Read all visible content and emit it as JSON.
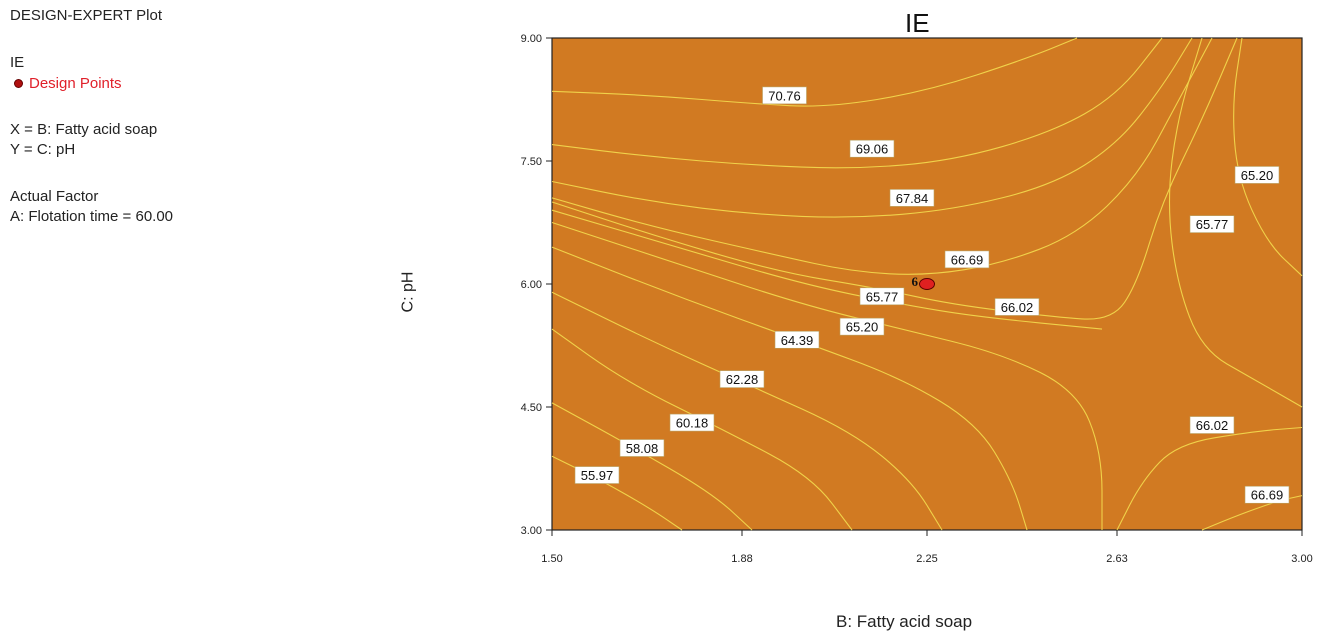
{
  "info": {
    "plot_name": "DESIGN-EXPERT Plot",
    "response": "IE",
    "design_points_label": "Design Points",
    "x_def": "X = B: Fatty acid soap",
    "y_def": "Y = C: pH",
    "actual_factor_heading": "Actual Factor",
    "actual_factor_value": "A: Flotation time = 60.00"
  },
  "colors": {
    "plot_fill": "#d17a22",
    "contour_line": "#f0d24a",
    "design_point": "#e02020",
    "design_point_label": "#e0202a"
  },
  "chart_data": {
    "type": "contour",
    "title": "IE",
    "xlabel": "B: Fatty acid soap",
    "ylabel": "C: pH",
    "xlim": [
      1.5,
      3.0
    ],
    "ylim": [
      3.0,
      9.0
    ],
    "x_ticks": [
      "1.50",
      "1.88",
      "2.25",
      "2.63",
      "3.00"
    ],
    "y_ticks": [
      "3.00",
      "4.50",
      "6.00",
      "7.50",
      "9.00"
    ],
    "design_point": {
      "x": 2.25,
      "y": 6.0,
      "label": "6"
    },
    "contours": [
      {
        "label": "70.76",
        "lx": 1.965,
        "ly": 8.3,
        "points": [
          [
            1.5,
            8.35
          ],
          [
            1.7,
            8.3
          ],
          [
            1.9,
            8.2
          ],
          [
            2.05,
            8.15
          ],
          [
            2.25,
            8.35
          ],
          [
            2.45,
            8.75
          ],
          [
            2.55,
            9.0
          ]
        ]
      },
      {
        "label": "69.06",
        "lx": 2.14,
        "ly": 7.65,
        "points": [
          [
            1.5,
            7.7
          ],
          [
            1.7,
            7.55
          ],
          [
            1.9,
            7.45
          ],
          [
            2.1,
            7.4
          ],
          [
            2.3,
            7.5
          ],
          [
            2.5,
            7.85
          ],
          [
            2.63,
            8.3
          ],
          [
            2.72,
            9.0
          ]
        ]
      },
      {
        "label": "67.84",
        "lx": 2.22,
        "ly": 7.05,
        "points": [
          [
            1.5,
            7.25
          ],
          [
            1.7,
            7.0
          ],
          [
            1.9,
            6.85
          ],
          [
            2.1,
            6.8
          ],
          [
            2.3,
            6.9
          ],
          [
            2.5,
            7.2
          ],
          [
            2.63,
            7.7
          ],
          [
            2.72,
            8.4
          ],
          [
            2.78,
            9.0
          ]
        ]
      },
      {
        "label": "66.69",
        "lx": 2.33,
        "ly": 6.3,
        "points": [
          [
            1.5,
            7.05
          ],
          [
            1.7,
            6.7
          ],
          [
            1.95,
            6.35
          ],
          [
            2.1,
            6.15
          ],
          [
            2.25,
            6.1
          ],
          [
            2.4,
            6.25
          ],
          [
            2.55,
            6.6
          ],
          [
            2.67,
            7.3
          ],
          [
            2.75,
            8.2
          ],
          [
            2.82,
            9.0
          ]
        ]
      },
      {
        "label": "66.02",
        "lx": 2.43,
        "ly": 5.72,
        "points": [
          [
            1.5,
            7.0
          ],
          [
            1.7,
            6.6
          ],
          [
            1.95,
            6.15
          ],
          [
            2.15,
            5.95
          ],
          [
            2.3,
            5.75
          ],
          [
            2.5,
            5.6
          ],
          [
            2.62,
            5.55
          ],
          [
            2.67,
            6.0
          ],
          [
            2.72,
            7.0
          ],
          [
            2.8,
            8.0
          ],
          [
            2.87,
            9.0
          ]
        ]
      },
      {
        "label": "65.77",
        "lx": 2.16,
        "ly": 5.85,
        "points": [
          [
            1.5,
            6.9
          ],
          [
            1.75,
            6.45
          ],
          [
            2.0,
            6.0
          ],
          [
            2.2,
            5.75
          ],
          [
            2.35,
            5.6
          ],
          [
            2.6,
            5.45
          ]
        ]
      },
      {
        "label": "65.20",
        "lx": 2.12,
        "ly": 5.48,
        "points": [
          [
            1.5,
            6.75
          ],
          [
            1.75,
            6.25
          ],
          [
            2.0,
            5.75
          ],
          [
            2.2,
            5.45
          ],
          [
            2.4,
            5.15
          ],
          [
            2.55,
            4.7
          ],
          [
            2.6,
            3.95
          ],
          [
            2.6,
            3.0
          ]
        ]
      },
      {
        "label": "64.39",
        "lx": 1.99,
        "ly": 5.32,
        "points": [
          [
            1.5,
            6.45
          ],
          [
            1.75,
            5.85
          ],
          [
            2.0,
            5.3
          ],
          [
            2.2,
            4.85
          ],
          [
            2.35,
            4.3
          ],
          [
            2.42,
            3.6
          ],
          [
            2.45,
            3.0
          ]
        ]
      },
      {
        "label": "62.28",
        "lx": 1.88,
        "ly": 4.84,
        "points": [
          [
            1.5,
            5.9
          ],
          [
            1.7,
            5.3
          ],
          [
            1.9,
            4.75
          ],
          [
            2.1,
            4.2
          ],
          [
            2.22,
            3.6
          ],
          [
            2.28,
            3.0
          ]
        ]
      },
      {
        "label": "60.18",
        "lx": 1.78,
        "ly": 4.31,
        "points": [
          [
            1.5,
            5.45
          ],
          [
            1.65,
            4.8
          ],
          [
            1.85,
            4.2
          ],
          [
            2.02,
            3.65
          ],
          [
            2.1,
            3.0
          ]
        ]
      },
      {
        "label": "58.08",
        "lx": 1.68,
        "ly": 4.0,
        "points": [
          [
            1.5,
            4.55
          ],
          [
            1.65,
            4.05
          ],
          [
            1.82,
            3.45
          ],
          [
            1.9,
            3.0
          ]
        ]
      },
      {
        "label": "55.97",
        "lx": 1.59,
        "ly": 3.67,
        "points": [
          [
            1.5,
            3.9
          ],
          [
            1.6,
            3.6
          ],
          [
            1.7,
            3.25
          ],
          [
            1.76,
            3.0
          ]
        ]
      },
      {
        "label": "65.20",
        "lx": 2.91,
        "ly": 7.33,
        "points": [
          [
            2.88,
            9.0
          ],
          [
            2.86,
            8.2
          ],
          [
            2.87,
            7.3
          ],
          [
            2.93,
            6.5
          ],
          [
            3.0,
            6.1
          ]
        ]
      },
      {
        "label": "65.77",
        "lx": 2.82,
        "ly": 6.73,
        "points": [
          [
            2.8,
            9.0
          ],
          [
            2.75,
            8.0
          ],
          [
            2.73,
            7.0
          ],
          [
            2.75,
            6.0
          ],
          [
            2.8,
            5.2
          ],
          [
            2.9,
            4.85
          ],
          [
            3.0,
            4.5
          ]
        ]
      },
      {
        "label": "66.02",
        "lx": 2.82,
        "ly": 4.28,
        "points": [
          [
            2.63,
            3.0
          ],
          [
            2.68,
            3.6
          ],
          [
            2.75,
            4.05
          ],
          [
            2.9,
            4.2
          ],
          [
            3.0,
            4.25
          ]
        ]
      },
      {
        "label": "66.69",
        "lx": 2.93,
        "ly": 3.43,
        "points": [
          [
            2.8,
            3.0
          ],
          [
            2.88,
            3.2
          ],
          [
            2.95,
            3.35
          ],
          [
            3.0,
            3.42
          ]
        ]
      }
    ]
  }
}
